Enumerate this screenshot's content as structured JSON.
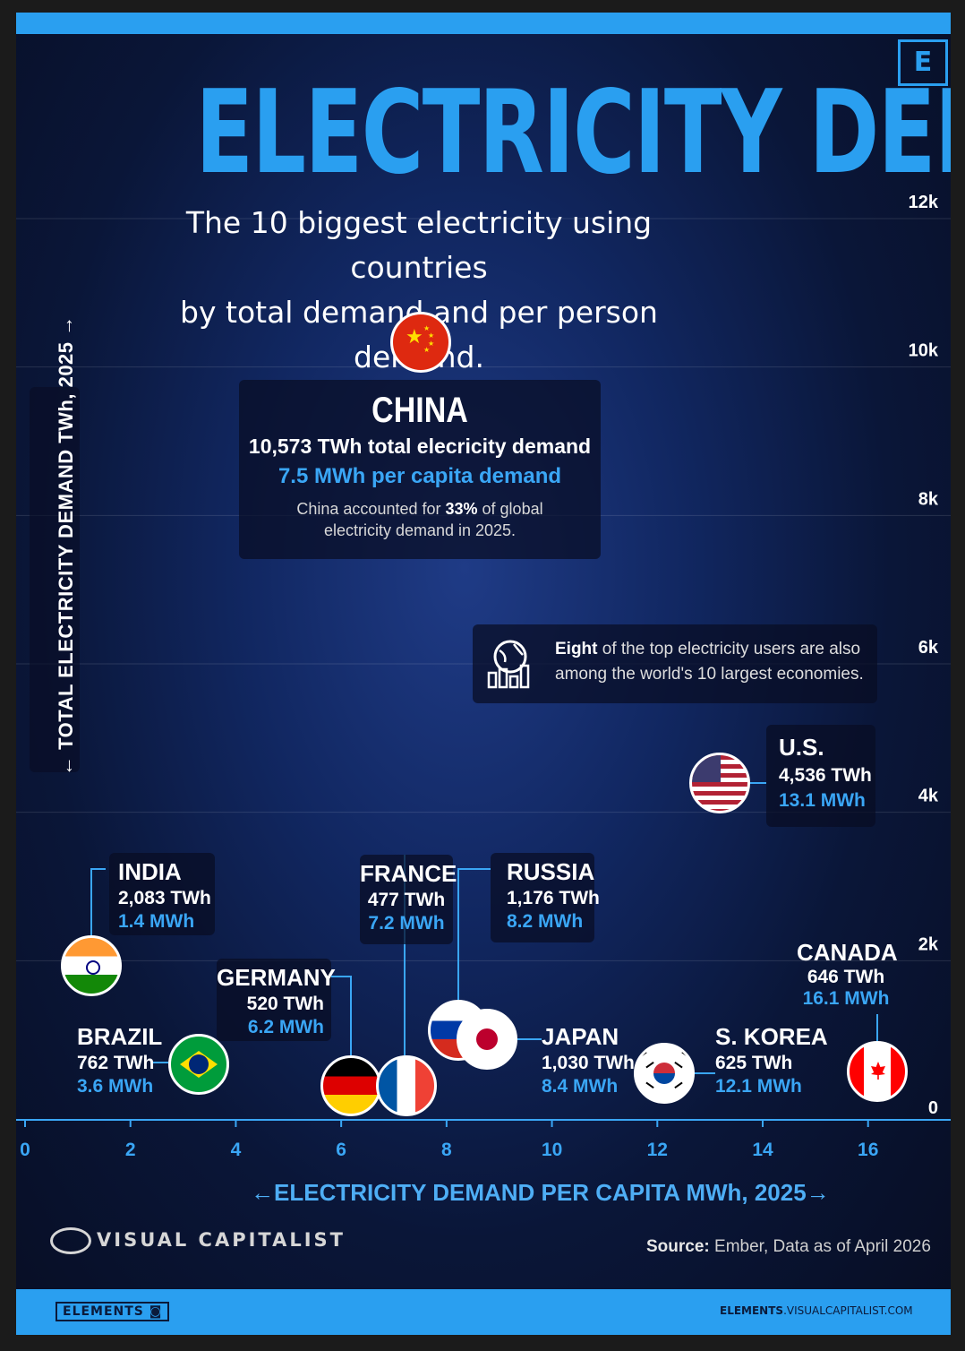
{
  "header": {
    "title": "ELECTRICITY DEMAND",
    "subtitle": "The 10 biggest electricity using countries\nby total demand and per person demand.",
    "logo_letter": "E"
  },
  "colors": {
    "accent": "#2a9ff0",
    "mwh_text": "#3aa6f5",
    "background": "#0d1d4a"
  },
  "china_card": {
    "name": "CHINA",
    "total": "10,573 TWh total elecricity demand",
    "per_capita": "7.5 MWh per capita demand",
    "note_pre": "China accounted for ",
    "note_bold": "33%",
    "note_post": " of global electricity demand in 2025."
  },
  "economies_note": {
    "bold": "Eight",
    "rest": " of the top electricity users are also among the world's 10 largest economies.",
    "icon": "globe-chart-icon"
  },
  "chart_data": {
    "type": "scatter",
    "xlabel": "ELECTRICITY DEMAND PER CAPITA MWh, 2025",
    "ylabel": "TOTAL ELECTRICITY DEMAND TWh, 2025",
    "xlim": [
      0,
      17.5
    ],
    "ylim": [
      0,
      12000
    ],
    "x_ticks": [
      "0",
      "2",
      "4",
      "6",
      "8",
      "10",
      "12",
      "14",
      "16"
    ],
    "y_ticks": [
      {
        "value": 0,
        "label": "0"
      },
      {
        "value": 2000,
        "label": "2k"
      },
      {
        "value": 4000,
        "label": "4k"
      },
      {
        "value": 6000,
        "label": "6k"
      },
      {
        "value": 8000,
        "label": "8k"
      },
      {
        "value": 10000,
        "label": "10k"
      },
      {
        "value": 12000,
        "label": "12k"
      }
    ],
    "points": [
      {
        "country": "CHINA",
        "twh": 10573,
        "mwh": 7.5,
        "twh_label": "10,573 TWh",
        "mwh_label": "7.5 MWh",
        "flag": "china-flag"
      },
      {
        "country": "U.S.",
        "twh": 4536,
        "mwh": 13.1,
        "twh_label": "4,536 TWh",
        "mwh_label": "13.1 MWh",
        "flag": "us-flag"
      },
      {
        "country": "INDIA",
        "twh": 2083,
        "mwh": 1.4,
        "twh_label": "2,083 TWh",
        "mwh_label": "1.4 MWh",
        "flag": "india-flag"
      },
      {
        "country": "RUSSIA",
        "twh": 1176,
        "mwh": 8.2,
        "twh_label": "1,176 TWh",
        "mwh_label": "8.2 MWh",
        "flag": "russia-flag"
      },
      {
        "country": "JAPAN",
        "twh": 1030,
        "mwh": 8.4,
        "twh_label": "1,030 TWh",
        "mwh_label": "8.4 MWh",
        "flag": "japan-flag"
      },
      {
        "country": "BRAZIL",
        "twh": 762,
        "mwh": 3.6,
        "twh_label": "762 TWh",
        "mwh_label": "3.6 MWh",
        "flag": "brazil-flag"
      },
      {
        "country": "CANADA",
        "twh": 646,
        "mwh": 16.1,
        "twh_label": "646 TWh",
        "mwh_label": "16.1 MWh",
        "flag": "canada-flag"
      },
      {
        "country": "S. KOREA",
        "twh": 625,
        "mwh": 12.1,
        "twh_label": "625 TWh",
        "mwh_label": "12.1 MWh",
        "flag": "south-korea-flag"
      },
      {
        "country": "GERMANY",
        "twh": 520,
        "mwh": 6.2,
        "twh_label": "520 TWh",
        "mwh_label": "6.2 MWh",
        "flag": "germany-flag"
      },
      {
        "country": "FRANCE",
        "twh": 477,
        "mwh": 7.2,
        "twh_label": "477 TWh",
        "mwh_label": "7.2 MWh",
        "flag": "france-flag"
      }
    ]
  },
  "x_axis_display": "←ELECTRICITY DEMAND PER CAPITA MWh, 2025→",
  "y_axis_display": "← TOTAL ELECTRICITY DEMAND TWh, 2025 →",
  "footer": {
    "brand": "VISUAL CAPITALIST",
    "source_label": "Source:",
    "source_text": " Ember, Data as of April 2026",
    "badge": "ELEMENTS",
    "site_bold": "ELEMENTS",
    "site_rest": ".VISUALCAPITALIST.COM"
  }
}
